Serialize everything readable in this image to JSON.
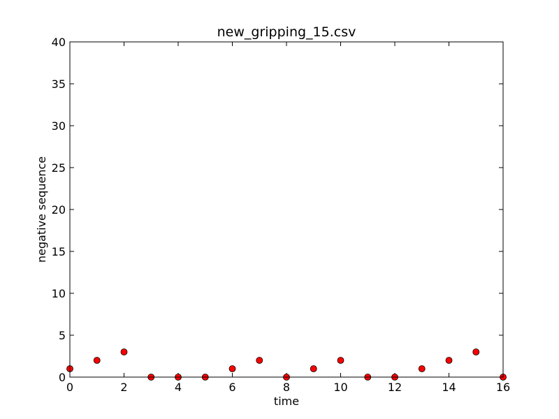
{
  "chart_data": {
    "type": "scatter",
    "title": "new_gripping_15.csv",
    "xlabel": "time",
    "ylabel": "negative sequence",
    "xlim": [
      0,
      16
    ],
    "ylim": [
      0,
      40
    ],
    "xticks": [
      0,
      2,
      4,
      6,
      8,
      10,
      12,
      14,
      16
    ],
    "yticks": [
      0,
      5,
      10,
      15,
      20,
      25,
      30,
      35,
      40
    ],
    "grid": false,
    "marker": "circle",
    "marker_color": "#ff0000",
    "series": [
      {
        "x": [
          0,
          1,
          2,
          3,
          4,
          5,
          6,
          7,
          8,
          9,
          10,
          11,
          12,
          13,
          14,
          15,
          16
        ],
        "y": [
          1,
          2,
          3,
          0,
          0,
          0,
          1,
          2,
          0,
          1,
          2,
          0,
          0,
          1,
          2,
          3,
          0
        ]
      }
    ]
  }
}
